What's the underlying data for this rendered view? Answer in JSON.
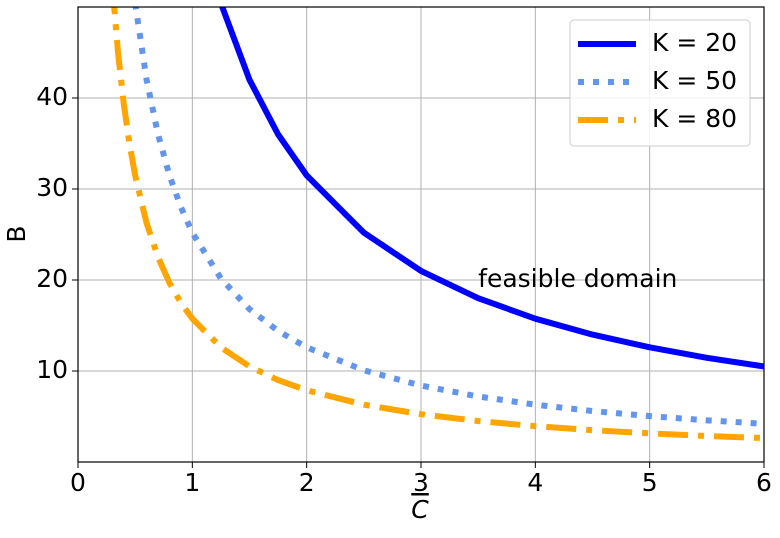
{
  "chart_data": {
    "type": "line",
    "xlabel": "C",
    "ylabel": "B",
    "annotation": "feasible domain",
    "x": [
      0.3,
      0.35,
      0.4,
      0.45,
      0.5,
      0.6,
      0.7,
      0.8,
      0.9,
      1,
      1.25,
      1.5,
      1.75,
      2,
      2.5,
      3,
      3.5,
      4,
      4.5,
      5,
      5.5,
      6
    ],
    "series": [
      {
        "name": "K = 20",
        "color": "#0000ff",
        "style": "solid",
        "values": [
          null,
          null,
          null,
          null,
          null,
          null,
          null,
          null,
          null,
          null,
          50.4,
          42,
          36,
          31.5,
          25.2,
          21,
          18,
          15.75,
          14,
          12.6,
          11.45,
          10.5
        ]
      },
      {
        "name": "K = 50",
        "color": "#6495ed",
        "style": "dotted",
        "values": [
          null,
          null,
          null,
          null,
          50.4,
          42,
          36,
          31.5,
          28,
          25.2,
          20.16,
          16.8,
          14.4,
          12.6,
          10.08,
          8.4,
          7.2,
          6.3,
          5.6,
          5.04,
          4.58,
          4.2
        ]
      },
      {
        "name": "K = 80",
        "color": "#ffa500",
        "style": "dashdot",
        "values": [
          52.5,
          45,
          39.38,
          35,
          31.5,
          26.25,
          22.5,
          19.69,
          17.5,
          15.75,
          12.6,
          10.5,
          9,
          7.88,
          6.3,
          5.25,
          4.5,
          3.94,
          3.5,
          3.15,
          2.86,
          2.63
        ]
      }
    ],
    "xlim": [
      0,
      6
    ],
    "xticks": [
      0,
      1,
      2,
      3,
      4,
      5,
      6
    ],
    "ylim": [
      0,
      50
    ],
    "yticks": [
      10,
      20,
      30,
      40
    ],
    "grid": true,
    "legend": "upper right"
  }
}
